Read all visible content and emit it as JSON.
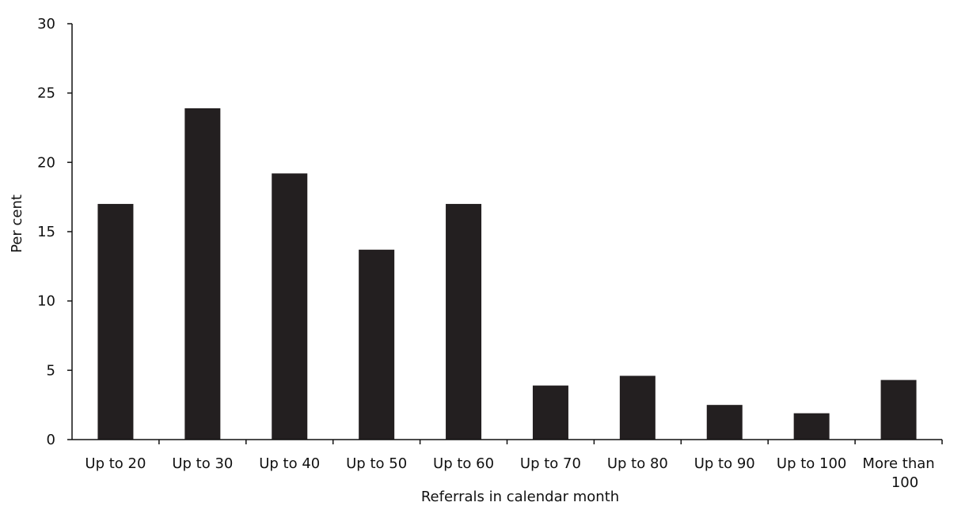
{
  "chart_data": {
    "type": "bar",
    "categories": [
      "Up to 20",
      "Up to 30",
      "Up to 40",
      "Up to 50",
      "Up to 60",
      "Up to 70",
      "Up to 80",
      "Up to 90",
      "Up to 100",
      "More than 100"
    ],
    "values": [
      17.0,
      23.9,
      19.2,
      13.7,
      17.0,
      3.9,
      4.6,
      2.5,
      1.9,
      4.3
    ],
    "title": "",
    "xlabel": "Referrals in calendar month",
    "ylabel": "Per cent",
    "ylim": [
      0,
      30
    ],
    "yticks": [
      0,
      5,
      10,
      15,
      20,
      25,
      30
    ],
    "grid": false,
    "legend": "none",
    "bar_color": "#231f20"
  }
}
